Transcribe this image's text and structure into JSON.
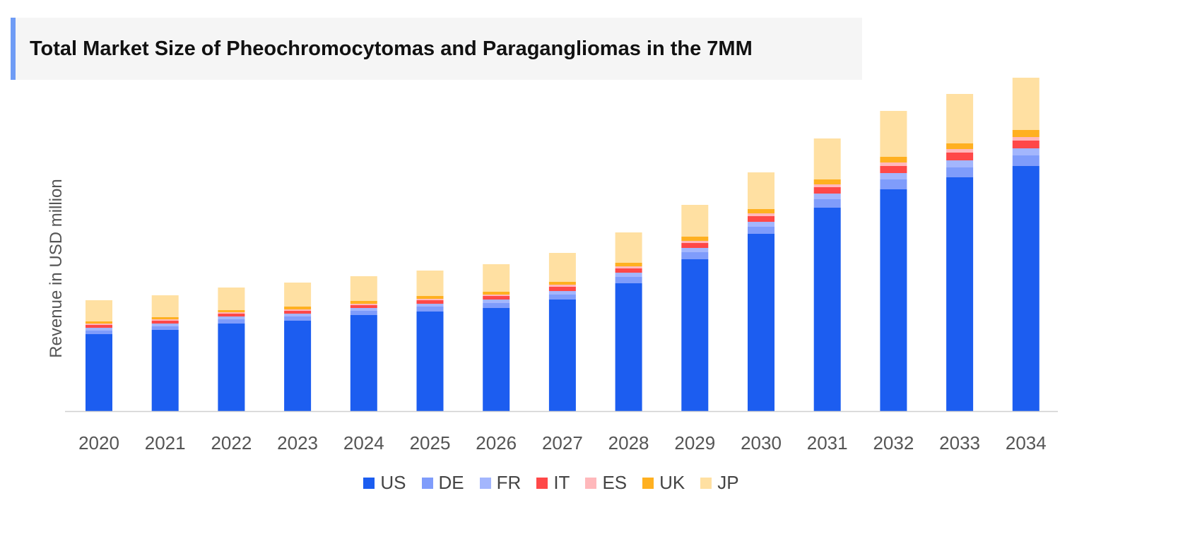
{
  "chart_data": {
    "type": "bar",
    "stacked": true,
    "title": "Total Market Size of Pheochromocytomas and Paragangliomas in the 7MM",
    "xlabel": "",
    "ylabel": "Revenue in USD million",
    "grid": false,
    "legend_position": "bottom",
    "categories": [
      "2020",
      "2021",
      "2022",
      "2023",
      "2024",
      "2025",
      "2026",
      "2027",
      "2028",
      "2029",
      "2030",
      "2031",
      "2032",
      "2033",
      "2034"
    ],
    "series": [
      {
        "name": "US",
        "color": "#1c5df0",
        "values": [
          109,
          115,
          124,
          128,
          136,
          141,
          146,
          158,
          181,
          215,
          251,
          288,
          314,
          331,
          347
        ]
      },
      {
        "name": "DE",
        "color": "#7f9cfb",
        "values": [
          5,
          5,
          6,
          6,
          6,
          7,
          7,
          7,
          9,
          10,
          10,
          12,
          14,
          14,
          15
        ]
      },
      {
        "name": "FR",
        "color": "#a3b6fd",
        "values": [
          4,
          4,
          4,
          4,
          4,
          4,
          5,
          5,
          6,
          6,
          7,
          8,
          9,
          10,
          10
        ]
      },
      {
        "name": "IT",
        "color": "#ff4848",
        "values": [
          4,
          4,
          4,
          4,
          4,
          5,
          5,
          6,
          6,
          7,
          8,
          9,
          10,
          11,
          11
        ]
      },
      {
        "name": "ES",
        "color": "#ffb8bb",
        "values": [
          2,
          2,
          2,
          2,
          2,
          2,
          2,
          3,
          3,
          3,
          4,
          4,
          5,
          5,
          5
        ]
      },
      {
        "name": "UK",
        "color": "#ffb020",
        "values": [
          3,
          3,
          3,
          4,
          4,
          4,
          4,
          4,
          5,
          6,
          6,
          7,
          8,
          8,
          10
        ]
      },
      {
        "name": "JP",
        "color": "#ffe0a2",
        "values": [
          30,
          31,
          32,
          34,
          35,
          36,
          39,
          41,
          43,
          45,
          52,
          58,
          65,
          70,
          74
        ]
      }
    ]
  }
}
